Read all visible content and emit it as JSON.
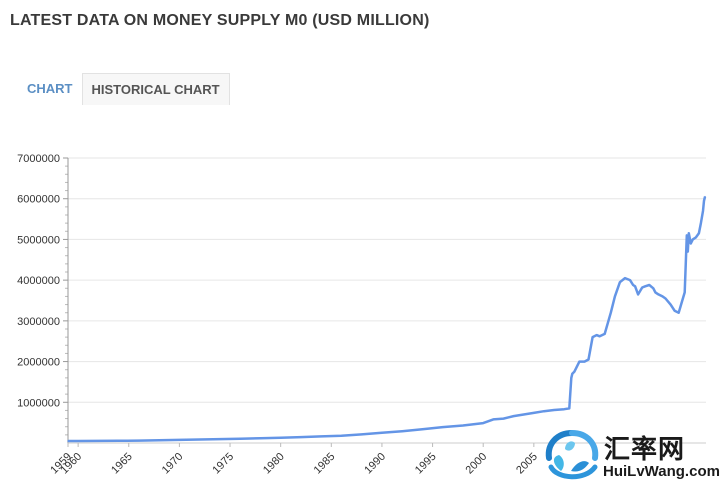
{
  "page": {
    "title": "LATEST DATA ON MONEY SUPPLY M0 (USD MILLION)",
    "tabs": [
      {
        "label": "CHART",
        "active": true
      },
      {
        "label": "HISTORICAL CHART",
        "active": false
      }
    ]
  },
  "watermark": {
    "name_cn": "汇率网",
    "url": "HuiLvWang.com"
  },
  "colors": {
    "line": "#6495e6",
    "accent": "#5b8fc4",
    "grid": "#e6e6e6",
    "axis_text": "#333333"
  },
  "chart_data": {
    "type": "line",
    "title": "",
    "xlabel": "",
    "ylabel": "",
    "xlim": [
      1959,
      2022
    ],
    "ylim": [
      0,
      7000000
    ],
    "grid": true,
    "x_tick_labels": [
      "1959",
      "1960",
      "1965",
      "1970",
      "1975",
      "1980",
      "1985",
      "1990",
      "1995",
      "2000",
      "2005"
    ],
    "x_ticks": [
      1959,
      1960,
      1965,
      1970,
      1975,
      1980,
      1985,
      1990,
      1995,
      2000,
      2005
    ],
    "y_ticks": [
      1000000,
      2000000,
      3000000,
      4000000,
      5000000,
      6000000,
      7000000
    ],
    "series": [
      {
        "x": [
          1959,
          1960,
          1962,
          1964,
          1966,
          1968,
          1970,
          1972,
          1974,
          1976,
          1978,
          1980,
          1982,
          1984,
          1986,
          1988,
          1990,
          1992,
          1994,
          1996,
          1998,
          2000,
          2001,
          2002,
          2003,
          2004,
          2005,
          2006,
          2007,
          2008.0,
          2008.5,
          2008.7,
          2008.8,
          2009,
          2009.5,
          2010,
          2010.4,
          2010.8,
          2011.2,
          2011.5,
          2012,
          2012.6,
          2013,
          2013.5,
          2014,
          2014.5,
          2014.8,
          2015.0,
          2015.3,
          2015.7,
          2016.0,
          2016.4,
          2016.8,
          2017,
          2017.3,
          2017.7,
          2018,
          2018.5,
          2018.9,
          2019.3,
          2019.6,
          2019.9,
          2020.1,
          2020.2,
          2020.3,
          2020.5,
          2020.7,
          2021.0,
          2021.3,
          2021.5,
          2021.7,
          2021.8,
          2021.9
        ],
        "values": [
          50000,
          50000,
          52000,
          55000,
          60000,
          68000,
          75000,
          85000,
          95000,
          105000,
          118000,
          130000,
          145000,
          162000,
          180000,
          210000,
          250000,
          290000,
          340000,
          390000,
          430000,
          490000,
          580000,
          600000,
          660000,
          700000,
          740000,
          780000,
          810000,
          830000,
          850000,
          1600000,
          1700000,
          1750000,
          2000000,
          2000000,
          2050000,
          2600000,
          2650000,
          2620000,
          2680000,
          3200000,
          3600000,
          3950000,
          4050000,
          4000000,
          3880000,
          3850000,
          3650000,
          3820000,
          3850000,
          3880000,
          3800000,
          3700000,
          3650000,
          3600000,
          3550000,
          3400000,
          3250000,
          3200000,
          3450000,
          3700000,
          5100000,
          4700000,
          5150000,
          4900000,
          5000000,
          5050000,
          5150000,
          5400000,
          5700000,
          5950000,
          6050000
        ]
      }
    ]
  }
}
